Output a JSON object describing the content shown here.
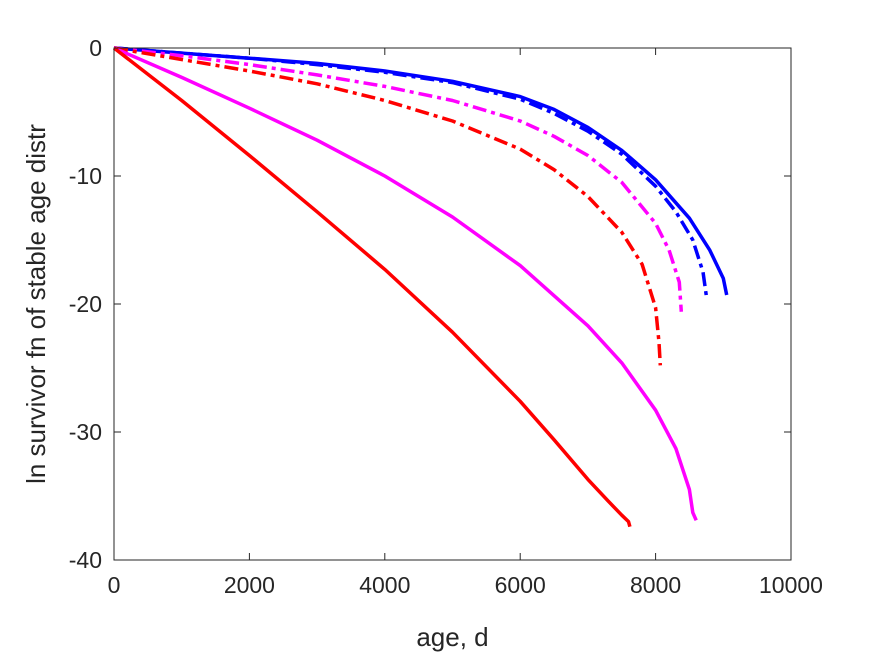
{
  "chart_data": {
    "type": "line",
    "xlabel": "age, d",
    "ylabel": "ln survivor fn of stable age distr",
    "xlim": [
      0,
      10000
    ],
    "ylim": [
      -40,
      0
    ],
    "xticks": [
      0,
      2000,
      4000,
      6000,
      8000,
      10000
    ],
    "yticks": [
      0,
      -10,
      -20,
      -30,
      -40
    ],
    "xtick_labels": [
      "0",
      "2000",
      "4000",
      "6000",
      "8000",
      "10000"
    ],
    "ytick_labels": [
      "0",
      "-10",
      "-20",
      "-30",
      "-40"
    ],
    "grid": false,
    "legend": "none",
    "series": [
      {
        "color": "#0000ff",
        "style": "solid",
        "x": [
          0,
          1000,
          2000,
          3000,
          4000,
          5000,
          6000,
          6500,
          7000,
          7500,
          8000,
          8500,
          8800,
          9000,
          9050
        ],
        "y": [
          0,
          -0.4,
          -0.8,
          -1.2,
          -1.8,
          -2.6,
          -3.8,
          -4.8,
          -6.2,
          -8.0,
          -10.3,
          -13.3,
          -15.8,
          -18.0,
          -19.3
        ]
      },
      {
        "color": "#0000ff",
        "style": "dashdot",
        "x": [
          0,
          1000,
          2000,
          3000,
          4000,
          5000,
          6000,
          6500,
          7000,
          7500,
          8000,
          8300,
          8550,
          8700,
          8750
        ],
        "y": [
          0,
          -0.4,
          -0.8,
          -1.3,
          -1.9,
          -2.7,
          -4.0,
          -5.1,
          -6.5,
          -8.3,
          -10.8,
          -12.8,
          -15.0,
          -17.5,
          -19.4
        ]
      },
      {
        "color": "#ff00ff",
        "style": "dashdot",
        "x": [
          0,
          1000,
          2000,
          3000,
          4000,
          5000,
          6000,
          6500,
          7000,
          7500,
          8000,
          8200,
          8350,
          8380
        ],
        "y": [
          0,
          -0.6,
          -1.3,
          -2.1,
          -3.0,
          -4.1,
          -5.7,
          -6.9,
          -8.4,
          -10.5,
          -13.7,
          -15.8,
          -18.3,
          -20.6
        ]
      },
      {
        "color": "#ff0000",
        "style": "dashdot",
        "x": [
          0,
          1000,
          2000,
          3000,
          4000,
          5000,
          6000,
          6500,
          7000,
          7500,
          7800,
          8000,
          8050,
          8070
        ],
        "y": [
          0,
          -0.9,
          -1.8,
          -2.8,
          -4.1,
          -5.7,
          -7.9,
          -9.5,
          -11.6,
          -14.4,
          -16.9,
          -20.3,
          -23.0,
          -24.8
        ]
      },
      {
        "color": "#ff00ff",
        "style": "solid",
        "x": [
          0,
          1000,
          2000,
          3000,
          4000,
          5000,
          6000,
          7000,
          7500,
          8000,
          8300,
          8500,
          8550,
          8600
        ],
        "y": [
          0,
          -2.3,
          -4.7,
          -7.2,
          -10.0,
          -13.2,
          -17.0,
          -21.7,
          -24.6,
          -28.3,
          -31.3,
          -34.5,
          -36.3,
          -36.9
        ]
      },
      {
        "color": "#ff0000",
        "style": "solid",
        "x": [
          0,
          1000,
          2000,
          3000,
          4000,
          5000,
          6000,
          6500,
          7000,
          7300,
          7500,
          7600,
          7620
        ],
        "y": [
          0,
          -4.1,
          -8.4,
          -12.8,
          -17.3,
          -22.2,
          -27.6,
          -30.6,
          -33.7,
          -35.4,
          -36.5,
          -37.0,
          -37.4
        ]
      }
    ]
  }
}
